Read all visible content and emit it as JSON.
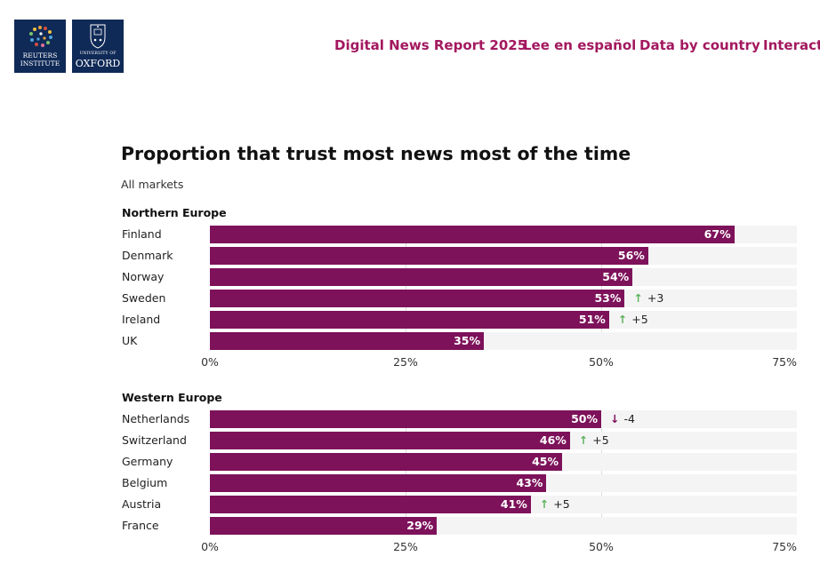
{
  "header": {
    "logo_reuters": [
      "REUTERS",
      "INSTITUTE"
    ],
    "logo_oxford": [
      "UNIVERSITY OF",
      "OXFORD"
    ],
    "nav": [
      "Digital News Report 2025",
      "Lee en español",
      "Data by country",
      "Interacti"
    ]
  },
  "colors": {
    "bar": "#7d125a",
    "track": "#f5f4f5",
    "up": "#5db35d",
    "down": "#7d125a",
    "link": "#a3185f",
    "logo_bg": "#102a57"
  },
  "chart_data": {
    "type": "bar",
    "orientation": "horizontal",
    "title": "Proportion that trust most news most of the time",
    "subtitle": "All markets",
    "xlim": [
      0,
      75
    ],
    "xticks": [
      "0%",
      "25%",
      "50%",
      "75%"
    ],
    "groups": [
      {
        "name": "Northern Europe",
        "categories": [
          "Finland",
          "Denmark",
          "Norway",
          "Sweden",
          "Ireland",
          "UK"
        ],
        "values": [
          67,
          56,
          54,
          53,
          51,
          35
        ],
        "changes": [
          "",
          "",
          "",
          "+3",
          "+5",
          ""
        ]
      },
      {
        "name": "Western Europe",
        "categories": [
          "Netherlands",
          "Switzerland",
          "Germany",
          "Belgium",
          "Austria",
          "France"
        ],
        "values": [
          50,
          46,
          45,
          43,
          41,
          29
        ],
        "changes": [
          "-4",
          "+5",
          "",
          "",
          "+5",
          ""
        ]
      }
    ]
  }
}
